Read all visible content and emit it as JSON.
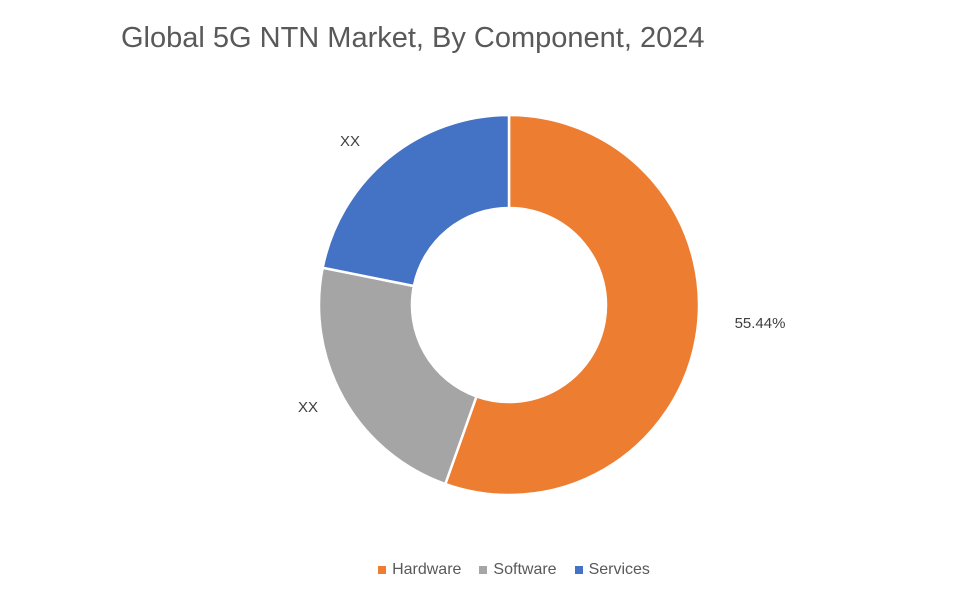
{
  "chart_data": {
    "type": "pie",
    "donut": true,
    "title": "Global 5G NTN Market, By Component, 2024",
    "categories": [
      "Hardware",
      "Software",
      "Services"
    ],
    "values": [
      55.44,
      22.7,
      21.86
    ],
    "data_labels": [
      "55.44%",
      "XX",
      "XX"
    ],
    "colors": [
      "#ED7D31",
      "#A5A5A5",
      "#4472C4"
    ],
    "legend": "bottom"
  }
}
